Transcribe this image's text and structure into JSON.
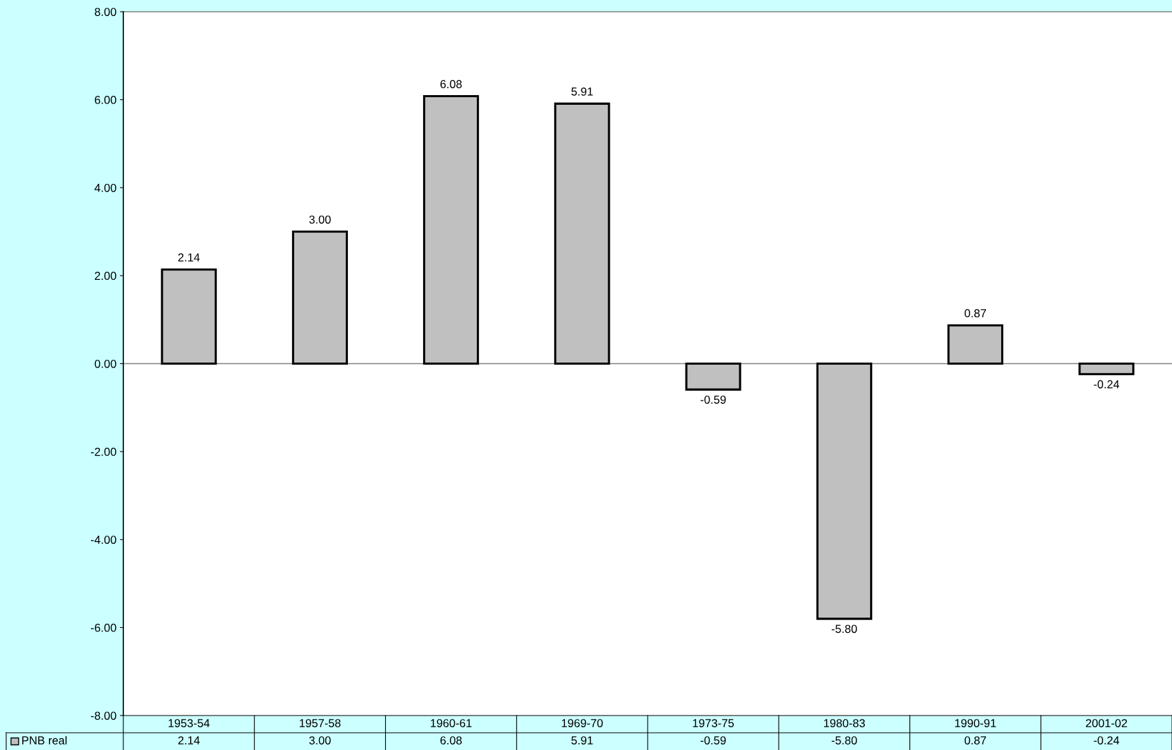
{
  "chart_data": {
    "type": "bar",
    "categories": [
      "1953-54",
      "1957-58",
      "1960-61",
      "1969-70",
      "1973-75",
      "1980-83",
      "1990-91",
      "2001-02"
    ],
    "series": [
      {
        "name": "PNB real",
        "color": "#c0c0c0",
        "values": [
          2.14,
          3.0,
          6.08,
          5.91,
          -0.59,
          -5.8,
          0.87,
          -0.24
        ],
        "value_labels": [
          "2.14",
          "3.00",
          "6.08",
          "5.91",
          "-0.59",
          "-5.80",
          "0.87",
          "-0.24"
        ]
      }
    ],
    "ylim": [
      -8,
      8
    ],
    "yticks": [
      {
        "value": -8,
        "label": "-8.00"
      },
      {
        "value": -6,
        "label": "-6.00"
      },
      {
        "value": -4,
        "label": "-4.00"
      },
      {
        "value": -2,
        "label": "-2.00"
      },
      {
        "value": 0,
        "label": "0.00"
      },
      {
        "value": 2,
        "label": "2.00"
      },
      {
        "value": 4,
        "label": "4.00"
      },
      {
        "value": 6,
        "label": "6.00"
      },
      {
        "value": 8,
        "label": "8.00"
      }
    ],
    "legend": "bottom"
  }
}
